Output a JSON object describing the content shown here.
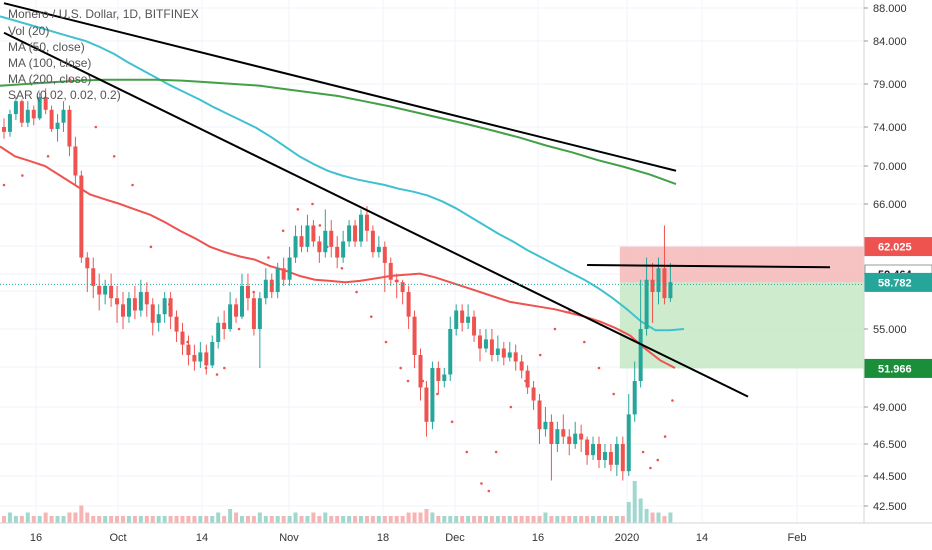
{
  "chart_data": {
    "type": "candlestick",
    "title": "Monero / U.S. Dollar, 1D, BITFINEX",
    "legend": [
      "Vol (20)",
      "MA (50, close)",
      "MA (100, close)",
      "MA (200, close)",
      "SAR (0.02, 0.02, 0.2)"
    ],
    "x_tick_labels": [
      "16",
      "Oct",
      "14",
      "Nov",
      "18",
      "Dec",
      "16",
      "2020",
      "14",
      "Feb"
    ],
    "x_tick_positions": [
      36,
      118,
      202,
      289,
      383,
      455,
      538,
      627,
      702,
      797
    ],
    "y_ticks": [
      "88.000",
      "84.000",
      "79.000",
      "74.000",
      "70.000",
      "66.000",
      "59.464",
      "55.000",
      "49.000",
      "46.500",
      "44.500",
      "42.500"
    ],
    "y_tick_values": [
      88,
      84,
      79,
      74,
      70,
      66,
      59.464,
      55,
      49,
      46.5,
      44.5,
      42.5
    ],
    "ylim": [
      41.5,
      88.5
    ],
    "price_tags": [
      {
        "label": "62.025",
        "value": 62.025,
        "color": "#ef5350",
        "text_color": "#ffffff"
      },
      {
        "label": "59.464",
        "value": 59.464,
        "color": "#ffffff",
        "text_color": "#131722"
      },
      {
        "label": "58.782",
        "value": 58.782,
        "color": "#26a69a",
        "text_color": "#ffffff"
      },
      {
        "label": "51.966",
        "value": 51.966,
        "color": "#1b8e3a",
        "text_color": "#ffffff"
      }
    ],
    "colors": {
      "up": "#26a69a",
      "down": "#ef5350",
      "ma50": "#ef5350",
      "ma100": "#3fc1d0",
      "ma200": "#43a047",
      "sar": "#ef5350",
      "trend": "#000000",
      "stop_zone": "#f4a9a8",
      "target_zone": "#b9e4b8"
    },
    "candles": [
      [
        74,
        73.5,
        75,
        72.8
      ],
      [
        73.5,
        75.5,
        76,
        73
      ],
      [
        75.5,
        77,
        77.5,
        74.8
      ],
      [
        77,
        74.5,
        77.2,
        74
      ],
      [
        74.5,
        76,
        77,
        74
      ],
      [
        76,
        75,
        76.5,
        74.2
      ],
      [
        75,
        77.5,
        78,
        74.8
      ],
      [
        77.5,
        76,
        78.5,
        75.5
      ],
      [
        76,
        73.8,
        76.5,
        73.5
      ],
      [
        73.8,
        74.5,
        75.5,
        72.5
      ],
      [
        74.5,
        76,
        77,
        73.5
      ],
      [
        76,
        72,
        76.5,
        71
      ],
      [
        72,
        69,
        73,
        68
      ],
      [
        69,
        61,
        69.5,
        60.5
      ],
      [
        61,
        60,
        61.5,
        58
      ],
      [
        60,
        58.5,
        61,
        57.5
      ],
      [
        58.5,
        57.8,
        59.5,
        56.5
      ],
      [
        57.8,
        58.5,
        59,
        57
      ],
      [
        58.5,
        57.5,
        59.5,
        56.8
      ],
      [
        57.5,
        57,
        58.5,
        55.5
      ],
      [
        57,
        56,
        58,
        55
      ],
      [
        56,
        57.5,
        58,
        55.5
      ],
      [
        57.5,
        56.5,
        58.5,
        55.8
      ],
      [
        56.5,
        58,
        59,
        56
      ],
      [
        58,
        57,
        58.8,
        56
      ],
      [
        57,
        55.5,
        57.5,
        54.5
      ],
      [
        55.5,
        56.2,
        57,
        54.8
      ],
      [
        56.2,
        57.5,
        58,
        55.5
      ],
      [
        57.5,
        56,
        58,
        55
      ],
      [
        56,
        54.8,
        56.5,
        54
      ],
      [
        54.8,
        53.8,
        55.5,
        53
      ],
      [
        53.8,
        53,
        54.5,
        52.2
      ],
      [
        53,
        52.5,
        53.8,
        51.8
      ],
      [
        52.5,
        53.2,
        54,
        52
      ],
      [
        53.2,
        52.2,
        53.8,
        51.5
      ],
      [
        52.2,
        54,
        54.5,
        52
      ],
      [
        54,
        55.5,
        56,
        53.5
      ],
      [
        55.5,
        55,
        56.5,
        54.2
      ],
      [
        55,
        57,
        58,
        54.8
      ],
      [
        57,
        56,
        57.5,
        55.5
      ],
      [
        56,
        58.5,
        59.5,
        55.8
      ],
      [
        58.5,
        57.5,
        59.5,
        56.5
      ],
      [
        57.5,
        55,
        58,
        54.5
      ],
      [
        55,
        57.5,
        58,
        52
      ],
      [
        57.5,
        59,
        60,
        57
      ],
      [
        59,
        58,
        59.5,
        57.5
      ],
      [
        58,
        60,
        60.5,
        57.5
      ],
      [
        60,
        59,
        61,
        58.5
      ],
      [
        59,
        61,
        62,
        58.5
      ],
      [
        61,
        63,
        64,
        60.5
      ],
      [
        63,
        62,
        64,
        61.5
      ],
      [
        62,
        64,
        65,
        61.5
      ],
      [
        64,
        62.5,
        64.5,
        62
      ],
      [
        62.5,
        61.5,
        63,
        60.5
      ],
      [
        61.5,
        63.5,
        65.5,
        61
      ],
      [
        63.5,
        62,
        64.5,
        61
      ],
      [
        62,
        61,
        63,
        60
      ],
      [
        61,
        62.5,
        63.5,
        60.5
      ],
      [
        62.5,
        64,
        64.5,
        62
      ],
      [
        64,
        62.5,
        64.5,
        62
      ],
      [
        62.5,
        65,
        65.5,
        62
      ],
      [
        65,
        63.5,
        65.8,
        62.5
      ],
      [
        63.5,
        61.5,
        64,
        61
      ],
      [
        61.5,
        62,
        63,
        61
      ],
      [
        62,
        60.5,
        62.5,
        58
      ],
      [
        60.5,
        59,
        61,
        58.5
      ],
      [
        59,
        58.8,
        59.5,
        57.5
      ],
      [
        58.8,
        58,
        59,
        57
      ],
      [
        58,
        56,
        58.5,
        55
      ],
      [
        56,
        53,
        56.5,
        52
      ],
      [
        53,
        50.5,
        53.5,
        49.5
      ],
      [
        50.5,
        48,
        51,
        47
      ],
      [
        48,
        52,
        52.5,
        47.5
      ],
      [
        52,
        51,
        52.5,
        50
      ],
      [
        51,
        51.5,
        52,
        50.5
      ],
      [
        51.5,
        55,
        56,
        51
      ],
      [
        55,
        56.5,
        57,
        54.5
      ],
      [
        56.5,
        55.5,
        57,
        54.8
      ],
      [
        55.5,
        56,
        57,
        55
      ],
      [
        56,
        54.5,
        56.5,
        54
      ],
      [
        54.5,
        53.5,
        55,
        52.5
      ],
      [
        53.5,
        54.2,
        55,
        53.2
      ],
      [
        54.2,
        53,
        55,
        52.5
      ],
      [
        53,
        53.5,
        54.5,
        52.5
      ],
      [
        53.5,
        52.8,
        54,
        52.2
      ],
      [
        52.8,
        53.2,
        54,
        52.5
      ],
      [
        53.2,
        52.5,
        53.8,
        51.8
      ],
      [
        52.5,
        51.8,
        53,
        51.2
      ],
      [
        51.8,
        50.5,
        52.2,
        50
      ],
      [
        50.5,
        49.5,
        51,
        48.8
      ],
      [
        49.5,
        47.5,
        50,
        46.5
      ],
      [
        47.5,
        48,
        49,
        47
      ],
      [
        48,
        46.5,
        48.5,
        44.2
      ],
      [
        46.5,
        47.5,
        48,
        46
      ],
      [
        47.5,
        47,
        48.5,
        46.5
      ],
      [
        47,
        46.5,
        47.5,
        45.8
      ],
      [
        46.5,
        47.2,
        48,
        46.2
      ],
      [
        47.2,
        46.8,
        47.8,
        46
      ],
      [
        46.8,
        45.8,
        47,
        45.2
      ],
      [
        45.8,
        46.5,
        47,
        45.5
      ],
      [
        46.5,
        45.5,
        47,
        45
      ],
      [
        45.5,
        46,
        46.5,
        45
      ],
      [
        46,
        45.2,
        46.5,
        44.8
      ],
      [
        45.2,
        46.5,
        47,
        44.5
      ],
      [
        46.5,
        44.8,
        47,
        44.2
      ],
      [
        44.8,
        48.5,
        50,
        44.5
      ],
      [
        48.5,
        51,
        52.5,
        48
      ],
      [
        51,
        55,
        59,
        50.5
      ],
      [
        55,
        59,
        61,
        54.5
      ],
      [
        59,
        58,
        60.5,
        55.5
      ],
      [
        58,
        60,
        61,
        57
      ],
      [
        60,
        57.5,
        64,
        57
      ],
      [
        57.5,
        58.8,
        60.5,
        57.2
      ]
    ],
    "volumes": [
      2,
      3,
      2,
      2,
      3,
      2,
      2,
      3,
      2,
      2,
      2,
      3,
      3,
      5,
      3,
      2,
      2,
      2,
      2,
      2,
      2,
      2,
      2,
      2,
      2,
      2,
      2,
      2,
      2,
      2,
      2,
      2,
      2,
      2,
      2,
      2,
      3,
      2,
      4,
      3,
      2,
      2,
      2,
      3,
      2,
      2,
      2,
      2,
      2,
      3,
      2,
      2,
      3,
      2,
      3,
      2,
      2,
      2,
      2,
      2,
      2,
      2,
      2,
      2,
      2,
      2,
      2,
      2,
      3,
      3,
      3,
      4,
      3,
      2,
      2,
      2,
      2,
      2,
      2,
      2,
      2,
      2,
      2,
      2,
      2,
      2,
      2,
      2,
      2,
      2,
      2,
      3,
      2,
      2,
      2,
      2,
      2,
      2,
      2,
      2,
      2,
      2,
      2,
      2,
      2,
      6,
      12,
      7,
      4,
      3,
      3,
      2,
      3
    ],
    "ma50": [
      72,
      71,
      70.5,
      70,
      69,
      68,
      67,
      66.5,
      66,
      65.5,
      65,
      64.3,
      63.5,
      62.8,
      62,
      61.5,
      61.1,
      60.8,
      60.2,
      59.8,
      59.3,
      59,
      58.9,
      58.8,
      58.9,
      59.1,
      59.3,
      59.4,
      59.5,
      59.2,
      58.8,
      58.4,
      58,
      57.6,
      57.2,
      57,
      56.8,
      56.6,
      56.3,
      56,
      55.6,
      55.1,
      54.5,
      53.5,
      52.6,
      52
    ],
    "ma100": [
      87,
      86.5,
      86,
      85.5,
      85,
      84.5,
      84,
      83.3,
      82.5,
      81.5,
      80.6,
      79.7,
      78.8,
      78,
      77.2,
      76.3,
      75.5,
      74.7,
      73.9,
      73,
      72,
      71,
      70.2,
      69.5,
      69,
      68.6,
      68.3,
      68,
      67.6,
      67.3,
      66.9,
      66.3,
      65.6,
      64.8,
      64,
      63.2,
      62.5,
      61.7,
      61,
      60.3,
      59.6,
      59,
      58.3,
      57.5,
      56.6,
      55.6,
      54.9,
      54.9,
      55
    ],
    "ma200": [
      78.8,
      79,
      79.2,
      79.4,
      79.5,
      79.5,
      79.5,
      79.4,
      79.2,
      79,
      78.8,
      78.4,
      78,
      77.6,
      77,
      76.4,
      75.7,
      75,
      74.3,
      73.6,
      72.9,
      72.1,
      71.4,
      70.6,
      69.9,
      69.1,
      68.1
    ],
    "sar": [
      [
        0,
        68
      ],
      [
        5,
        69
      ],
      [
        12,
        71
      ],
      [
        18,
        79.5
      ],
      [
        25,
        74
      ],
      [
        30,
        71
      ],
      [
        35,
        68
      ],
      [
        40,
        62
      ],
      [
        45,
        57
      ],
      [
        50,
        54
      ],
      [
        55,
        52
      ],
      [
        58,
        51.5
      ],
      [
        60,
        52
      ],
      [
        64,
        55
      ],
      [
        68,
        58
      ],
      [
        72,
        61
      ],
      [
        76,
        63.5
      ],
      [
        80,
        65.5
      ],
      [
        84,
        66
      ],
      [
        86,
        64
      ],
      [
        88,
        62
      ],
      [
        92,
        60
      ],
      [
        96,
        58
      ],
      [
        100,
        56
      ],
      [
        104,
        54
      ],
      [
        108,
        52
      ],
      [
        110,
        51
      ],
      [
        114,
        51
      ],
      [
        118,
        50
      ],
      [
        122,
        48
      ],
      [
        126,
        46
      ],
      [
        130,
        44
      ],
      [
        132,
        43.5
      ],
      [
        134,
        46
      ],
      [
        138,
        49
      ],
      [
        142,
        51
      ],
      [
        146,
        53
      ],
      [
        150,
        55
      ],
      [
        154,
        56.5
      ],
      [
        158,
        54
      ],
      [
        162,
        52
      ],
      [
        166,
        50
      ],
      [
        170,
        48
      ],
      [
        174,
        46
      ],
      [
        176,
        45
      ],
      [
        178,
        45.5
      ],
      [
        180,
        47
      ],
      [
        182,
        49.5
      ]
    ],
    "trendlines": [
      {
        "name": "upper",
        "from": [
          0,
          88.6
        ],
        "to": [
          60,
          69.5
        ]
      },
      {
        "name": "lower",
        "from": [
          0,
          85
        ],
        "to": [
          110,
          49.8
        ]
      },
      {
        "name": "target-level",
        "from": [
          98,
          60.3
        ],
        "to": [
          116,
          60.1
        ]
      }
    ],
    "position": {
      "entry": 58.782,
      "stop": 62.025,
      "target": 51.966,
      "x_start": 103.5,
      "x_end": 116
    }
  }
}
